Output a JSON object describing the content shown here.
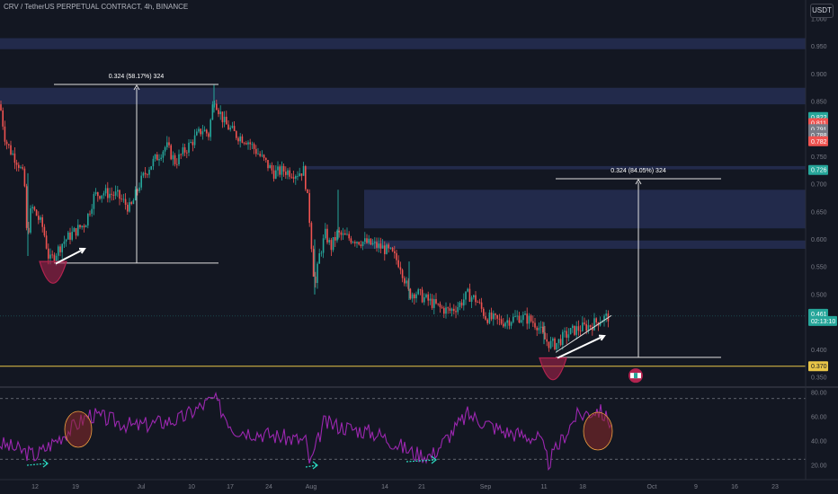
{
  "header": {
    "title": "CRV / TetherUS PERPETUAL CONTRACT, 4h, BINANCE"
  },
  "unit_button": "USDT",
  "colors": {
    "background": "#131722",
    "up": "#26a69a",
    "down": "#ef5350",
    "zone": "#2f3b6e",
    "rsi": "#9c27b0",
    "support_line": "#e8c547",
    "cup": "#b2234f",
    "dotted_arrow": "#2bd9c0"
  },
  "chart_data": [
    {
      "type": "candlestick",
      "title": "CRV / TetherUS PERPETUAL CONTRACT, 4h, BINANCE",
      "ylim": [
        0.345,
        1.0
      ],
      "y_ticks": [
        0.35,
        0.4,
        0.45,
        0.5,
        0.55,
        0.6,
        0.65,
        0.7,
        0.75,
        0.8,
        0.85,
        0.9,
        0.95,
        1.0
      ],
      "x_ticks": [
        "12",
        "19",
        "Jul",
        "10",
        "17",
        "24",
        "Aug",
        "14",
        "21",
        "Sep",
        "11",
        "18",
        "Oct",
        "9",
        "16",
        "23"
      ],
      "price_path": [
        [
          0,
          0.845
        ],
        [
          6,
          0.78
        ],
        [
          12,
          0.76
        ],
        [
          20,
          0.74
        ],
        [
          27,
          0.71
        ],
        [
          30,
          0.6
        ],
        [
          35,
          0.66
        ],
        [
          42,
          0.64
        ],
        [
          48,
          0.62
        ],
        [
          55,
          0.56
        ],
        [
          62,
          0.575
        ],
        [
          70,
          0.595
        ],
        [
          80,
          0.61
        ],
        [
          95,
          0.63
        ],
        [
          105,
          0.68
        ],
        [
          115,
          0.685
        ],
        [
          130,
          0.68
        ],
        [
          145,
          0.655
        ],
        [
          155,
          0.7
        ],
        [
          165,
          0.73
        ],
        [
          175,
          0.75
        ],
        [
          185,
          0.77
        ],
        [
          195,
          0.74
        ],
        [
          205,
          0.76
        ],
        [
          215,
          0.78
        ],
        [
          225,
          0.8
        ],
        [
          232,
          0.79
        ],
        [
          238,
          0.86
        ],
        [
          242,
          0.84
        ],
        [
          250,
          0.81
        ],
        [
          262,
          0.79
        ],
        [
          275,
          0.78
        ],
        [
          285,
          0.76
        ],
        [
          295,
          0.74
        ],
        [
          305,
          0.72
        ],
        [
          315,
          0.725
        ],
        [
          330,
          0.72
        ],
        [
          338,
          0.725
        ],
        [
          343,
          0.66
        ],
        [
          346,
          0.6
        ],
        [
          350,
          0.51
        ],
        [
          355,
          0.57
        ],
        [
          362,
          0.61
        ],
        [
          368,
          0.585
        ],
        [
          375,
          0.61
        ],
        [
          382,
          0.605
        ],
        [
          395,
          0.6
        ],
        [
          405,
          0.595
        ],
        [
          415,
          0.59
        ],
        [
          425,
          0.585
        ],
        [
          435,
          0.575
        ],
        [
          445,
          0.555
        ],
        [
          455,
          0.5
        ],
        [
          462,
          0.505
        ],
        [
          470,
          0.495
        ],
        [
          480,
          0.485
        ],
        [
          490,
          0.475
        ],
        [
          500,
          0.47
        ],
        [
          510,
          0.48
        ],
        [
          520,
          0.5
        ],
        [
          530,
          0.49
        ],
        [
          540,
          0.46
        ],
        [
          548,
          0.455
        ],
        [
          558,
          0.45
        ],
        [
          568,
          0.455
        ],
        [
          578,
          0.46
        ],
        [
          588,
          0.455
        ],
        [
          598,
          0.445
        ],
        [
          605,
          0.42
        ],
        [
          612,
          0.41
        ],
        [
          618,
          0.41
        ],
        [
          628,
          0.425
        ],
        [
          638,
          0.435
        ],
        [
          648,
          0.44
        ],
        [
          658,
          0.445
        ],
        [
          668,
          0.455
        ],
        [
          678,
          0.461
        ]
      ],
      "horizontal_zones": [
        {
          "low": 0.945,
          "high": 0.965
        },
        {
          "low": 0.845,
          "high": 0.875
        },
        {
          "low": 0.727,
          "high": 0.733
        },
        {
          "low": 0.62,
          "high": 0.69
        },
        {
          "low": 0.583,
          "high": 0.598
        }
      ],
      "support_level": 0.37,
      "last_price_level": 0.461,
      "measurements": [
        {
          "label": "0.324 (58.17%) 324",
          "low": 0.557,
          "high": 0.881
        },
        {
          "label": "0.324 (84.05%) 324",
          "low": 0.386,
          "high": 0.71
        }
      ],
      "price_labels": [
        {
          "value": "0.822",
          "y": 0.822,
          "color": "#26a69a"
        },
        {
          "value": "0.811",
          "y": 0.811,
          "color": "#ef5350"
        },
        {
          "value": "0.791",
          "y": 0.8,
          "color": "#787b86"
        },
        {
          "value": "0.788",
          "y": 0.789,
          "color": "#787b86"
        },
        {
          "value": "0.782",
          "y": 0.778,
          "color": "#ef5350"
        },
        {
          "value": "0.726",
          "y": 0.726,
          "color": "#26a69a"
        },
        {
          "value": "0.461",
          "y": 0.465,
          "color": "#26a69a"
        },
        {
          "value": "02:13:10",
          "y": 0.452,
          "color": "#26a69a"
        },
        {
          "value": "0.370",
          "y": 0.37,
          "color": "#e8c547"
        }
      ]
    },
    {
      "type": "line",
      "title": "RSI",
      "ylim": [
        10,
        95
      ],
      "y_ticks": [
        20.0,
        40.0,
        60.0,
        80.0
      ],
      "reference_lines": [
        75,
        25
      ],
      "y_tick_labels": [
        "20.00",
        "40.00",
        "60.00",
        "80.00"
      ]
    }
  ]
}
